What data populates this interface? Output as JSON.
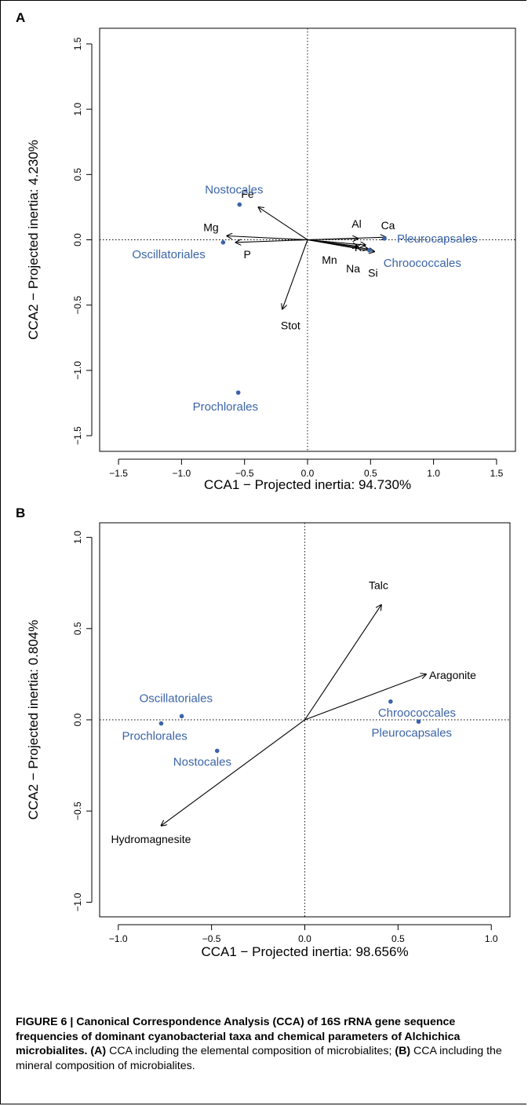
{
  "panels": [
    {
      "letter": "A",
      "chart_data": {
        "type": "scatter",
        "title": "",
        "xlabel": "CCA1 − Projected inertia: 94.730%",
        "ylabel": "CCA2 − Projected inertia: 4.230%",
        "xlim": [
          -1.65,
          1.65
        ],
        "ylim": [
          -1.62,
          1.62
        ],
        "xticks": [
          -1.5,
          -1.0,
          -0.5,
          0.0,
          0.5,
          1.0,
          1.5
        ],
        "yticks": [
          -1.5,
          -1.0,
          -0.5,
          0.0,
          0.5,
          1.0,
          1.5
        ],
        "tick_labels_x": [
          "−1.5",
          "−1.0",
          "−0.5",
          "0.0",
          "0.5",
          "1.0",
          "1.5"
        ],
        "tick_labels_y": [
          "−1.5",
          "−1.0",
          "−0.5",
          "0.0",
          "0.5",
          "1.0",
          "1.5"
        ],
        "reference_lines": "dotted lines at x=0 and y=0",
        "taxa": [
          {
            "name": "Nostocales",
            "x": -0.54,
            "y": 0.27
          },
          {
            "name": "Oscillatoriales",
            "x": -0.67,
            "y": -0.02
          },
          {
            "name": "Prochlorales",
            "x": -0.55,
            "y": -1.17
          },
          {
            "name": "Chroococcales",
            "x": 0.49,
            "y": -0.08
          },
          {
            "name": "Pleurocapsales",
            "x": 0.61,
            "y": 0.01
          }
        ],
        "vectors": [
          {
            "name": "Fe",
            "x": -0.39,
            "y": 0.25
          },
          {
            "name": "Mg",
            "x": -0.64,
            "y": 0.03
          },
          {
            "name": "P",
            "x": -0.57,
            "y": -0.02
          },
          {
            "name": "Stot",
            "x": -0.2,
            "y": -0.53
          },
          {
            "name": "Al",
            "x": 0.4,
            "y": 0.01
          },
          {
            "name": "Ca",
            "x": 0.62,
            "y": 0.02
          },
          {
            "name": "K",
            "x": 0.46,
            "y": -0.04
          },
          {
            "name": "Mn",
            "x": 0.4,
            "y": -0.05
          },
          {
            "name": "Na",
            "x": 0.48,
            "y": -0.07
          },
          {
            "name": "Si",
            "x": 0.53,
            "y": -0.09
          }
        ]
      }
    },
    {
      "letter": "B",
      "chart_data": {
        "type": "scatter",
        "title": "",
        "xlabel": "CCA1 − Projected inertia: 98.656%",
        "ylabel": "CCA2 − Projected inertia: 0.804%",
        "xlim": [
          -1.1,
          1.1
        ],
        "ylim": [
          -1.08,
          1.08
        ],
        "xticks": [
          -1.0,
          -0.5,
          0.0,
          0.5,
          1.0
        ],
        "yticks": [
          -1.0,
          -0.5,
          0.0,
          0.5,
          1.0
        ],
        "tick_labels_x": [
          "−1.0",
          "−0.5",
          "0.0",
          "0.5",
          "1.0"
        ],
        "tick_labels_y": [
          "−1.0",
          "−0.5",
          "0.0",
          "0.5",
          "1.0"
        ],
        "reference_lines": "dotted lines at x=0 and y=0",
        "taxa": [
          {
            "name": "Oscillatoriales",
            "x": -0.66,
            "y": 0.02
          },
          {
            "name": "Prochlorales",
            "x": -0.77,
            "y": -0.02
          },
          {
            "name": "Nostocales",
            "x": -0.47,
            "y": -0.17
          },
          {
            "name": "Chroococcales",
            "x": 0.46,
            "y": 0.1
          },
          {
            "name": "Pleurocapsales",
            "x": 0.61,
            "y": -0.01
          }
        ],
        "vectors": [
          {
            "name": "Talc",
            "x": 0.41,
            "y": 0.63
          },
          {
            "name": "Aragonite",
            "x": 0.65,
            "y": 0.25
          },
          {
            "name": "Hydromagnesite",
            "x": -0.77,
            "y": -0.58
          }
        ]
      }
    }
  ],
  "caption": {
    "figure_label": "FIGURE 6 | Canonical Correspondence Analysis (CCA) of 16S rRNA gene sequence frequencies of dominant cyanobacterial taxa and chemical parameters of Alchichica microbialites.",
    "a_ref": "(A)",
    "a_text": " CCA including the elemental composition of microbialites; ",
    "b_ref": "(B)",
    "b_text": " CCA including the mineral composition of microbialites."
  },
  "colors": {
    "taxa": "#3b64a8",
    "vectors": "#000000"
  }
}
